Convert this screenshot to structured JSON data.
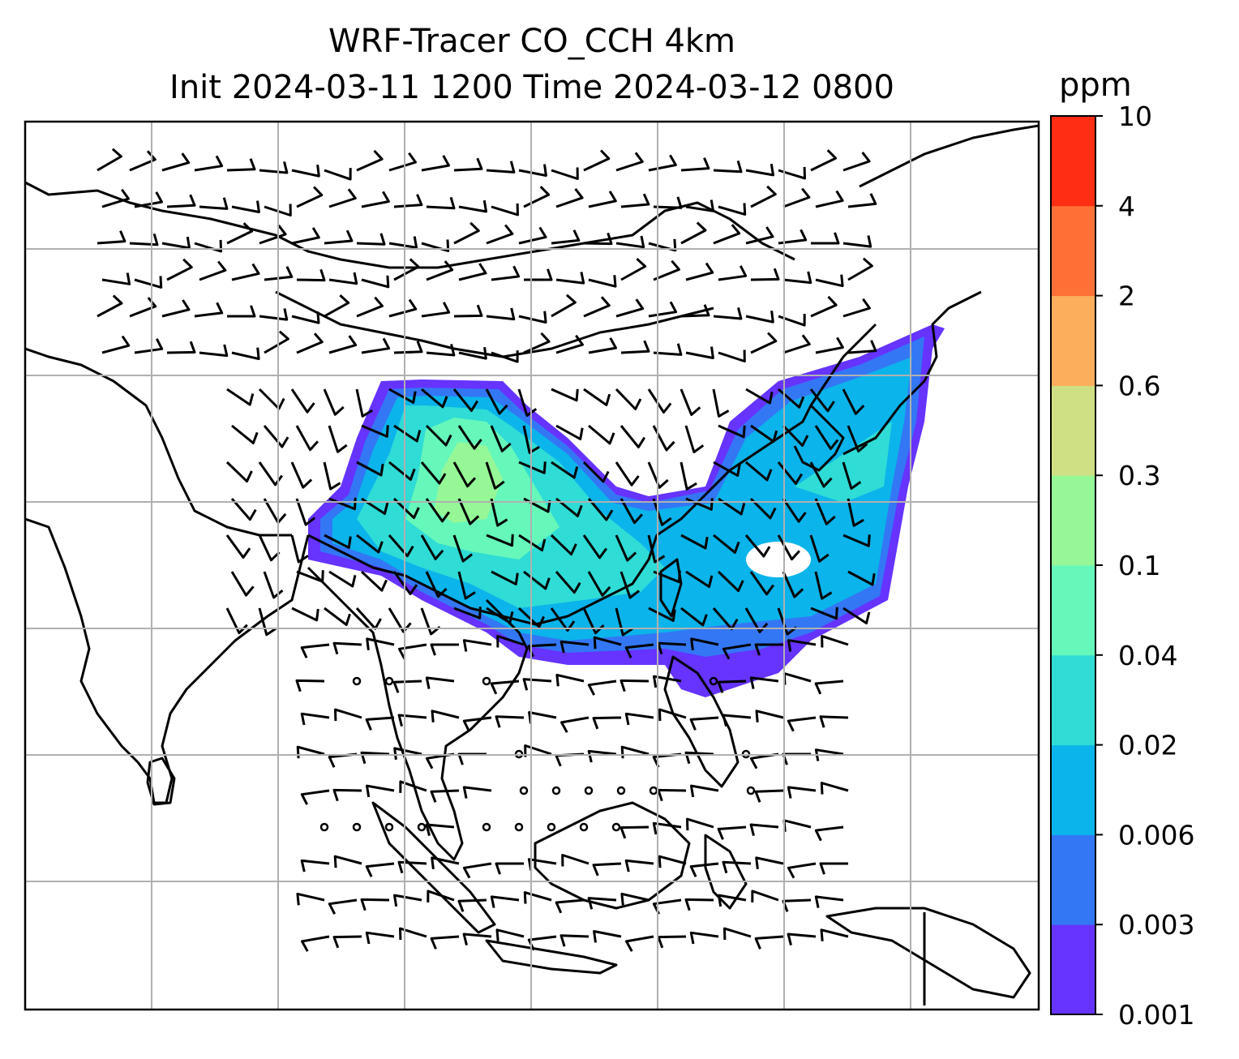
{
  "title": {
    "line1": "WRF-Tracer CO_CCH 4km",
    "line2": "Init 2024-03-11 1200 Time 2024-03-12 0800"
  },
  "colorbar": {
    "unit": "ppm",
    "levels": [
      "0.001",
      "0.003",
      "0.006",
      "0.02",
      "0.04",
      "0.1",
      "0.3",
      "0.6",
      "2",
      "4",
      "10"
    ],
    "colors": [
      "#6633ff",
      "#3377f5",
      "#0bb4ea",
      "#2fdcd6",
      "#66f7bb",
      "#96f797",
      "#cfe084",
      "#fcae5d",
      "#ff7137",
      "#ff2d14"
    ]
  },
  "map": {
    "gridline_color": "#b0b0b0",
    "coastline_color": "#000000",
    "barb_color": "#000000"
  }
}
